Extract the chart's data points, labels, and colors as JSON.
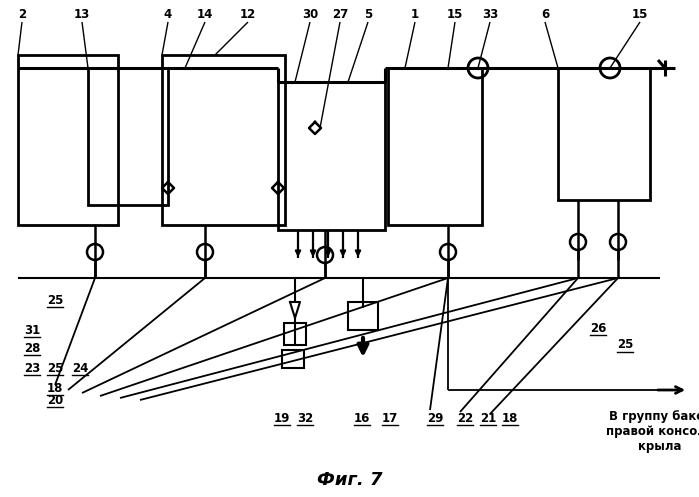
{
  "title": "Фиг. 7",
  "bg_color": "#ffffff",
  "line_color": "#000000",
  "lw": 1.8,
  "fig_width": 6.99,
  "fig_height": 4.97,
  "dpi": 100,
  "right_text": "В группу баков\nправой консоли\nкрыла"
}
